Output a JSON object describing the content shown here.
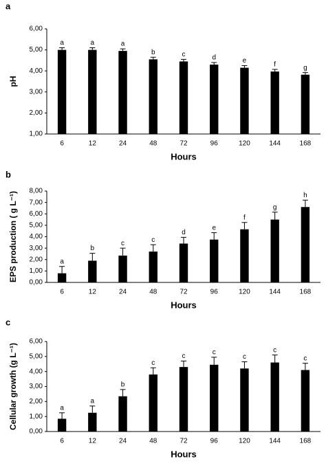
{
  "chart_data": [
    {
      "type": "bar",
      "panel": "a",
      "x_label": "Hours",
      "y_label": "pH",
      "categories": [
        "6",
        "12",
        "24",
        "48",
        "72",
        "96",
        "120",
        "144",
        "168"
      ],
      "values": [
        5.0,
        5.0,
        4.95,
        4.55,
        4.45,
        4.3,
        4.15,
        3.97,
        3.82
      ],
      "errors": [
        0.1,
        0.1,
        0.1,
        0.1,
        0.1,
        0.1,
        0.1,
        0.1,
        0.1
      ],
      "letters": [
        "a",
        "a",
        "a",
        "b",
        "c",
        "d",
        "e",
        "f",
        "g"
      ],
      "color": "#000000",
      "ylim": [
        1,
        6
      ],
      "yticks": [
        {
          "value": 1,
          "label": "1,00"
        },
        {
          "value": 2,
          "label": "2,00"
        },
        {
          "value": 3,
          "label": "3,00"
        },
        {
          "value": 4,
          "label": "4,00"
        },
        {
          "value": 5,
          "label": "5,00"
        },
        {
          "value": 6,
          "label": "6,00"
        }
      ]
    },
    {
      "type": "bar",
      "panel": "b",
      "x_label": "Hours",
      "y_label": "EPS production  ( g L⁻¹)",
      "categories": [
        "6",
        "12",
        "24",
        "48",
        "72",
        "96",
        "120",
        "144",
        "168"
      ],
      "values": [
        0.8,
        1.9,
        2.35,
        2.7,
        3.4,
        3.75,
        4.65,
        5.5,
        6.6
      ],
      "errors": [
        0.6,
        0.65,
        0.65,
        0.6,
        0.55,
        0.6,
        0.6,
        0.65,
        0.6
      ],
      "letters": [
        "a",
        "b",
        "c",
        "c",
        "d",
        "e",
        "f",
        "g",
        "h"
      ],
      "color": "#000000",
      "ylim": [
        0,
        8
      ],
      "yticks": [
        {
          "value": 0,
          "label": "0,00"
        },
        {
          "value": 1,
          "label": "1,00"
        },
        {
          "value": 2,
          "label": "2,00"
        },
        {
          "value": 3,
          "label": "3,00"
        },
        {
          "value": 4,
          "label": "4,00"
        },
        {
          "value": 5,
          "label": "5,00"
        },
        {
          "value": 6,
          "label": "6,00"
        },
        {
          "value": 7,
          "label": "7,00"
        },
        {
          "value": 8,
          "label": "8,00"
        }
      ]
    },
    {
      "type": "bar",
      "panel": "c",
      "x_label": "Hours",
      "y_label": "Cellular growth (g L⁻¹)",
      "categories": [
        "6",
        "12",
        "24",
        "48",
        "72",
        "96",
        "120",
        "144",
        "168"
      ],
      "values": [
        0.85,
        1.25,
        2.35,
        3.8,
        4.3,
        4.45,
        4.2,
        4.6,
        4.1
      ],
      "errors": [
        0.4,
        0.45,
        0.45,
        0.45,
        0.4,
        0.5,
        0.45,
        0.5,
        0.45
      ],
      "letters": [
        "a",
        "a",
        "b",
        "c",
        "c",
        "c",
        "c",
        "c",
        "c"
      ],
      "color": "#000000",
      "ylim": [
        0,
        6
      ],
      "yticks": [
        {
          "value": 0,
          "label": "0,00"
        },
        {
          "value": 1,
          "label": "1,00"
        },
        {
          "value": 2,
          "label": "2,00"
        },
        {
          "value": 3,
          "label": "3,00"
        },
        {
          "value": 4,
          "label": "4,00"
        },
        {
          "value": 5,
          "label": "5,00"
        },
        {
          "value": 6,
          "label": "6,00"
        }
      ]
    }
  ]
}
